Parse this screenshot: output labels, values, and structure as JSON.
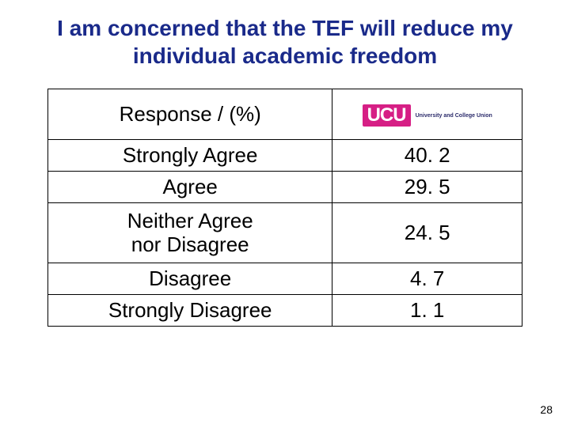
{
  "title": "I am concerned that the TEF will reduce my individual academic freedom",
  "table": {
    "header": {
      "left": "Response / (%)",
      "logo_abbr": "UCU",
      "logo_full": "University and College Union"
    },
    "rows": [
      {
        "label": "Strongly Agree",
        "value": "40. 2"
      },
      {
        "label": "Agree",
        "value": "29. 5"
      },
      {
        "label": "Neither Agree\nnor Disagree",
        "value": "24. 5"
      },
      {
        "label": "Disagree",
        "value": "4. 7"
      },
      {
        "label": "Strongly Disagree",
        "value": "1. 1"
      }
    ]
  },
  "page_number": "28",
  "colors": {
    "title_color": "#1a2a8a",
    "logo_bg": "#d61f85",
    "border": "#000000",
    "background": "#ffffff"
  },
  "typography": {
    "title_fontsize": 28,
    "cell_fontsize": 26,
    "font_family": "Trebuchet MS"
  }
}
